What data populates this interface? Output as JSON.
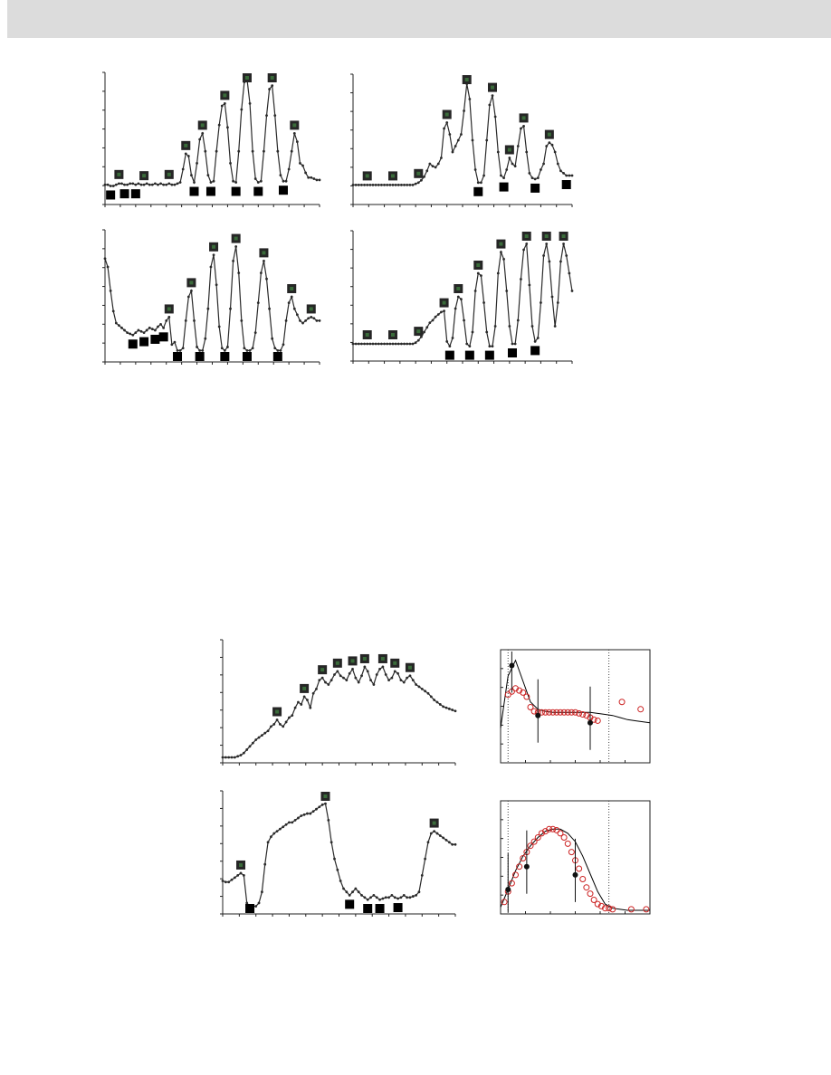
{
  "colors": {
    "band": "#dcdcdc",
    "line": "#2a2a2a",
    "box_dark": "#262626",
    "box_black": "#000000",
    "box_green_hint": "#3a6b3a",
    "fit_line": "#000000",
    "model_points": "#cc2222"
  },
  "chart_data": [
    {
      "type": "line",
      "x": [
        0,
        3,
        6,
        9,
        12,
        15,
        18,
        21,
        24,
        27,
        30,
        33,
        36,
        39,
        42,
        45,
        48,
        51,
        54,
        57,
        60,
        63,
        66,
        69,
        72,
        75,
        78,
        81,
        84,
        87,
        90,
        93,
        96,
        99,
        102,
        105,
        108,
        111,
        114,
        117,
        120,
        123,
        126,
        129,
        132,
        135,
        138,
        141,
        144,
        147,
        150,
        153,
        156,
        159,
        162,
        165,
        168,
        171,
        174,
        177,
        180,
        183,
        186,
        189,
        192,
        195,
        198,
        201,
        204,
        207,
        210,
        213,
        216,
        219,
        222,
        225,
        228,
        231
      ],
      "values": [
        0.12,
        0.12,
        0.11,
        0.11,
        0.12,
        0.13,
        0.13,
        0.12,
        0.12,
        0.13,
        0.13,
        0.12,
        0.13,
        0.12,
        0.12,
        0.13,
        0.12,
        0.12,
        0.13,
        0.12,
        0.13,
        0.12,
        0.12,
        0.13,
        0.12,
        0.12,
        0.13,
        0.14,
        0.25,
        0.38,
        0.36,
        0.2,
        0.14,
        0.3,
        0.5,
        0.55,
        0.4,
        0.2,
        0.14,
        0.15,
        0.4,
        0.62,
        0.78,
        0.8,
        0.6,
        0.3,
        0.15,
        0.14,
        0.4,
        0.75,
        0.98,
        1.0,
        0.8,
        0.4,
        0.17,
        0.14,
        0.15,
        0.4,
        0.7,
        0.92,
        0.95,
        0.7,
        0.4,
        0.2,
        0.15,
        0.15,
        0.25,
        0.4,
        0.55,
        0.48,
        0.3,
        0.28,
        0.22,
        0.18,
        0.18,
        0.17,
        0.16,
        0.16
      ]
    },
    {
      "type": "line",
      "x": [
        0,
        3,
        6,
        9,
        12,
        15,
        18,
        21,
        24,
        27,
        30,
        33,
        36,
        39,
        42,
        45,
        48,
        51,
        54,
        57,
        60,
        63,
        66,
        69,
        72,
        75,
        78,
        81,
        84,
        87,
        90,
        93,
        96,
        99,
        102,
        105,
        108,
        111,
        114,
        117,
        120,
        123,
        126,
        129,
        132,
        135,
        138,
        141,
        144,
        147,
        150,
        153,
        156,
        159,
        162,
        165,
        168,
        171,
        174,
        177,
        180,
        183,
        186,
        189,
        192,
        195,
        198,
        201,
        204,
        207,
        210,
        213,
        216,
        219,
        222,
        225,
        228,
        231
      ],
      "values": [
        0.12,
        0.12,
        0.12,
        0.12,
        0.12,
        0.12,
        0.12,
        0.12,
        0.12,
        0.12,
        0.12,
        0.12,
        0.12,
        0.12,
        0.12,
        0.12,
        0.12,
        0.12,
        0.12,
        0.12,
        0.12,
        0.12,
        0.13,
        0.14,
        0.16,
        0.19,
        0.24,
        0.3,
        0.28,
        0.27,
        0.3,
        0.35,
        0.6,
        0.65,
        0.55,
        0.4,
        0.45,
        0.5,
        0.55,
        0.75,
        0.98,
        0.85,
        0.5,
        0.25,
        0.14,
        0.14,
        0.2,
        0.5,
        0.8,
        0.88,
        0.7,
        0.4,
        0.2,
        0.18,
        0.25,
        0.35,
        0.3,
        0.28,
        0.45,
        0.6,
        0.62,
        0.4,
        0.22,
        0.18,
        0.17,
        0.18,
        0.25,
        0.3,
        0.45,
        0.48,
        0.46,
        0.4,
        0.3,
        0.24,
        0.22,
        0.2,
        0.2,
        0.2
      ]
    },
    {
      "type": "line",
      "x": [
        0,
        3,
        6,
        9,
        12,
        15,
        18,
        21,
        24,
        27,
        30,
        33,
        36,
        39,
        42,
        45,
        48,
        51,
        54,
        57,
        60,
        63,
        66,
        69,
        72,
        75,
        78,
        81,
        84,
        87,
        90,
        93,
        96,
        99,
        102,
        105,
        108,
        111,
        114,
        117,
        120,
        123,
        126,
        129,
        132,
        135,
        138,
        141,
        144,
        147,
        150,
        153,
        156,
        159,
        162,
        165,
        168,
        171,
        174,
        177,
        180,
        183,
        186,
        189,
        192,
        195,
        198,
        201,
        204,
        207,
        210,
        213,
        216,
        219,
        222,
        225,
        228,
        231
      ],
      "values": [
        0.82,
        0.75,
        0.55,
        0.38,
        0.28,
        0.26,
        0.24,
        0.22,
        0.2,
        0.19,
        0.18,
        0.2,
        0.22,
        0.21,
        0.2,
        0.22,
        0.24,
        0.23,
        0.22,
        0.25,
        0.27,
        0.24,
        0.3,
        0.33,
        0.1,
        0.12,
        0.05,
        0.05,
        0.07,
        0.3,
        0.5,
        0.55,
        0.3,
        0.08,
        0.05,
        0.05,
        0.15,
        0.4,
        0.75,
        0.85,
        0.6,
        0.25,
        0.07,
        0.05,
        0.08,
        0.4,
        0.8,
        0.92,
        0.7,
        0.3,
        0.07,
        0.05,
        0.05,
        0.07,
        0.2,
        0.45,
        0.7,
        0.8,
        0.65,
        0.4,
        0.15,
        0.07,
        0.05,
        0.05,
        0.1,
        0.3,
        0.45,
        0.5,
        0.4,
        0.35,
        0.3,
        0.28,
        0.3,
        0.32,
        0.33,
        0.32,
        0.3,
        0.3
      ]
    },
    {
      "type": "line",
      "x": [
        0,
        3,
        6,
        9,
        12,
        15,
        18,
        21,
        24,
        27,
        30,
        33,
        36,
        39,
        42,
        45,
        48,
        51,
        54,
        57,
        60,
        63,
        66,
        69,
        72,
        75,
        78,
        81,
        84,
        87,
        90,
        93,
        96,
        99,
        102,
        105,
        108,
        111,
        114,
        117,
        120,
        123,
        126,
        129,
        132,
        135,
        138,
        141,
        144,
        147,
        150,
        153,
        156,
        159,
        162,
        165,
        168,
        171,
        174,
        177,
        180,
        183,
        186,
        189,
        192,
        195,
        198,
        201,
        204,
        207,
        210,
        213,
        216,
        219,
        222,
        225,
        228,
        231
      ],
      "values": [
        0.1,
        0.1,
        0.1,
        0.1,
        0.1,
        0.1,
        0.1,
        0.1,
        0.1,
        0.1,
        0.1,
        0.1,
        0.1,
        0.1,
        0.1,
        0.1,
        0.1,
        0.1,
        0.1,
        0.1,
        0.1,
        0.1,
        0.11,
        0.13,
        0.16,
        0.2,
        0.24,
        0.28,
        0.3,
        0.33,
        0.35,
        0.37,
        0.38,
        0.12,
        0.08,
        0.15,
        0.4,
        0.5,
        0.48,
        0.3,
        0.1,
        0.08,
        0.2,
        0.55,
        0.7,
        0.68,
        0.45,
        0.2,
        0.08,
        0.08,
        0.25,
        0.7,
        0.88,
        0.82,
        0.55,
        0.25,
        0.1,
        0.1,
        0.3,
        0.65,
        0.9,
        0.95,
        0.6,
        0.25,
        0.12,
        0.15,
        0.45,
        0.85,
        0.95,
        0.8,
        0.5,
        0.25,
        0.45,
        0.8,
        0.95,
        0.85,
        0.7,
        0.55
      ]
    },
    {
      "type": "line",
      "x": [
        0,
        3,
        6,
        9,
        12,
        15,
        18,
        21,
        24,
        27,
        30,
        33,
        36,
        39,
        42,
        45,
        48,
        51,
        54,
        57,
        60,
        63,
        66,
        69,
        72,
        75,
        78,
        81,
        84,
        87,
        90,
        93,
        96,
        99,
        102,
        105,
        108,
        111,
        114,
        117,
        120,
        123,
        126,
        129,
        132,
        135,
        138,
        141,
        144,
        147,
        150,
        153,
        156,
        159,
        162,
        165,
        168,
        171,
        174,
        177,
        180,
        183,
        186,
        189,
        192,
        195,
        198,
        201,
        204,
        207,
        210,
        213,
        216,
        219,
        222,
        225,
        228,
        231
      ],
      "values": [
        0.0,
        0.0,
        0.0,
        0.0,
        0.0,
        0.01,
        0.02,
        0.04,
        0.07,
        0.1,
        0.13,
        0.16,
        0.18,
        0.2,
        0.22,
        0.24,
        0.28,
        0.3,
        0.34,
        0.3,
        0.28,
        0.32,
        0.36,
        0.38,
        0.45,
        0.5,
        0.48,
        0.55,
        0.52,
        0.45,
        0.58,
        0.62,
        0.7,
        0.72,
        0.68,
        0.66,
        0.7,
        0.75,
        0.78,
        0.74,
        0.72,
        0.7,
        0.76,
        0.8,
        0.72,
        0.68,
        0.74,
        0.82,
        0.78,
        0.7,
        0.66,
        0.75,
        0.8,
        0.82,
        0.75,
        0.7,
        0.72,
        0.78,
        0.76,
        0.7,
        0.68,
        0.72,
        0.74,
        0.7,
        0.66,
        0.64,
        0.62,
        0.6,
        0.58,
        0.55,
        0.52,
        0.5,
        0.48,
        0.46,
        0.45,
        0.44,
        0.43,
        0.42
      ]
    },
    {
      "type": "line",
      "x": [
        0,
        3,
        6,
        9,
        12,
        15,
        18,
        21,
        24,
        27,
        30,
        33,
        36,
        39,
        42,
        45,
        48,
        51,
        54,
        57,
        60,
        63,
        66,
        69,
        72,
        75,
        78,
        81,
        84,
        87,
        90,
        93,
        96,
        99,
        102,
        105,
        108,
        111,
        114,
        117,
        120,
        123,
        126,
        129,
        132,
        135,
        138,
        141,
        144,
        147,
        150,
        153,
        156,
        159,
        162,
        165,
        168,
        171,
        174,
        177,
        180,
        183,
        186,
        189,
        192,
        195,
        198,
        201,
        204,
        207,
        210,
        213,
        216,
        219,
        222,
        225,
        228,
        231
      ],
      "values": [
        0.25,
        0.24,
        0.24,
        0.26,
        0.28,
        0.3,
        0.32,
        0.3,
        0.05,
        0.02,
        0.02,
        0.02,
        0.05,
        0.15,
        0.4,
        0.6,
        0.65,
        0.68,
        0.7,
        0.72,
        0.74,
        0.76,
        0.78,
        0.78,
        0.8,
        0.82,
        0.84,
        0.85,
        0.86,
        0.86,
        0.88,
        0.9,
        0.92,
        0.94,
        0.95,
        0.8,
        0.6,
        0.45,
        0.35,
        0.25,
        0.18,
        0.15,
        0.12,
        0.15,
        0.18,
        0.15,
        0.12,
        0.1,
        0.08,
        0.1,
        0.12,
        0.1,
        0.08,
        0.09,
        0.1,
        0.1,
        0.12,
        0.1,
        0.09,
        0.1,
        0.12,
        0.1,
        0.1,
        0.11,
        0.12,
        0.15,
        0.3,
        0.45,
        0.6,
        0.68,
        0.7,
        0.68,
        0.66,
        0.64,
        0.62,
        0.6,
        0.58,
        0.58
      ]
    },
    {
      "type": "scatter",
      "series": [
        {
          "kind": "fit",
          "values_x": [
            0,
            4,
            8,
            12,
            16,
            20,
            24,
            28,
            32,
            36,
            40,
            44,
            48,
            52,
            56,
            60,
            64,
            68,
            72,
            76,
            80
          ],
          "values_y": [
            0.3,
            0.8,
            0.95,
            0.75,
            0.55,
            0.48,
            0.46,
            0.45,
            0.45,
            0.45,
            0.45,
            0.45,
            0.45,
            0.44,
            0.43,
            0.42,
            0.4,
            0.38,
            0.37,
            0.36,
            0.35
          ]
        },
        {
          "kind": "model",
          "values_x": [
            4,
            6,
            8,
            10,
            12,
            14,
            16,
            18,
            20,
            22,
            24,
            26,
            28,
            30,
            32,
            34,
            36,
            38,
            40,
            42,
            44,
            46,
            48,
            50,
            52,
            65,
            75
          ],
          "values_y": [
            0.62,
            0.65,
            0.68,
            0.66,
            0.64,
            0.6,
            0.5,
            0.46,
            0.45,
            0.45,
            0.45,
            0.45,
            0.45,
            0.45,
            0.45,
            0.45,
            0.45,
            0.45,
            0.45,
            0.44,
            0.43,
            0.42,
            0.4,
            0.38,
            0.37,
            0.55,
            0.48
          ]
        },
        {
          "kind": "observed",
          "values_x": [
            6,
            20,
            48
          ],
          "values_y": [
            0.9,
            0.42,
            0.35
          ]
        }
      ]
    },
    {
      "type": "scatter",
      "series": [
        {
          "kind": "fit",
          "values_x": [
            0,
            4,
            8,
            12,
            16,
            20,
            24,
            28,
            32,
            36,
            40,
            44,
            48,
            52,
            56,
            60,
            64,
            68,
            72,
            76,
            80
          ],
          "values_y": [
            0.03,
            0.2,
            0.38,
            0.52,
            0.62,
            0.7,
            0.76,
            0.78,
            0.78,
            0.74,
            0.66,
            0.52,
            0.35,
            0.18,
            0.06,
            0.02,
            0.01,
            0.0,
            0.0,
            0.0,
            0.0
          ]
        },
        {
          "kind": "model",
          "values_x": [
            2,
            4,
            6,
            8,
            10,
            12,
            14,
            16,
            18,
            20,
            22,
            24,
            26,
            28,
            30,
            32,
            34,
            36,
            38,
            40,
            42,
            44,
            46,
            48,
            50,
            52,
            54,
            56,
            58,
            60,
            70,
            78
          ],
          "values_y": [
            0.08,
            0.18,
            0.26,
            0.34,
            0.42,
            0.5,
            0.56,
            0.62,
            0.66,
            0.7,
            0.74,
            0.76,
            0.78,
            0.78,
            0.77,
            0.74,
            0.7,
            0.64,
            0.56,
            0.48,
            0.4,
            0.3,
            0.22,
            0.16,
            0.1,
            0.06,
            0.04,
            0.02,
            0.02,
            0.01,
            0.01,
            0.01
          ]
        },
        {
          "kind": "observed",
          "values_x": [
            4,
            14,
            40
          ],
          "values_y": [
            0.2,
            0.42,
            0.34
          ]
        }
      ]
    }
  ]
}
